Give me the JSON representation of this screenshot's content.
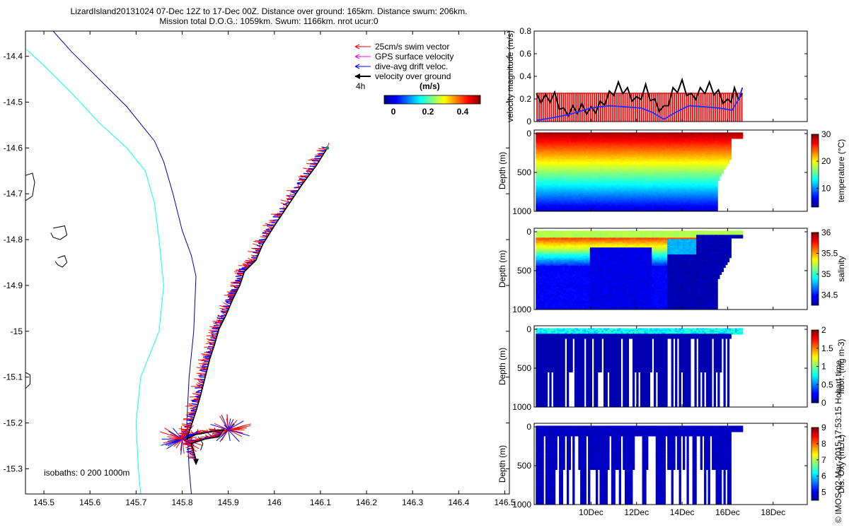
{
  "header": {
    "line1": "LizardIsland20131024 07-Dec 12Z to 17-Dec 00Z. Distance over ground: 165km. Distance swum: 206km.",
    "line2": "Mission total D.O.G.: 1059km. Swum: 1166km. nrot ucur:0"
  },
  "credit": "© IMOS 02-Mar-2015 17:53:15 Hobart time",
  "colors": {
    "swim": "#ff0000",
    "gps": "#ff00ff",
    "drift": "#0000ff",
    "ground": "#000000",
    "isobath_0": "#000000",
    "isobath_200": "#00ffff",
    "isobath_1000": "#0000aa"
  },
  "chart_data": [
    {
      "type": "scatter",
      "panel": "map",
      "xlim": [
        145.46,
        146.51
      ],
      "ylim": [
        -15.355,
        -14.345
      ],
      "xticks": [
        145.5,
        145.6,
        145.7,
        145.8,
        145.9,
        146,
        146.1,
        146.2,
        146.3,
        146.4,
        146.5
      ],
      "yticks": [
        -14.4,
        -14.5,
        -14.6,
        -14.7,
        -14.8,
        -14.9,
        -15,
        -15.1,
        -15.2,
        -15.3
      ],
      "legend": [
        "25cm/s swim vector",
        "GPS surface velocity",
        "dive-avg drift veloc.",
        "velocity over ground"
      ],
      "scale_label": "4h",
      "colorbar": {
        "label": "(m/s)",
        "ticks": [
          "0",
          "0.2",
          "0.4"
        ],
        "range": [
          -0.05,
          0.5
        ]
      },
      "isobath_label": "isobaths: 0   200  1000m",
      "track": [
        [
          146.115,
          -14.6
        ],
        [
          146.09,
          -14.64
        ],
        [
          146.06,
          -14.68
        ],
        [
          146.03,
          -14.725
        ],
        [
          146.0,
          -14.77
        ],
        [
          145.975,
          -14.81
        ],
        [
          145.96,
          -14.845
        ],
        [
          145.935,
          -14.87
        ],
        [
          145.925,
          -14.9
        ],
        [
          145.91,
          -14.93
        ],
        [
          145.895,
          -14.965
        ],
        [
          145.88,
          -14.995
        ],
        [
          145.87,
          -15.03
        ],
        [
          145.86,
          -15.06
        ],
        [
          145.85,
          -15.1
        ],
        [
          145.84,
          -15.14
        ],
        [
          145.83,
          -15.175
        ],
        [
          145.82,
          -15.205
        ],
        [
          145.81,
          -15.235
        ],
        [
          145.83,
          -15.225
        ],
        [
          145.86,
          -15.22
        ],
        [
          145.89,
          -15.215
        ],
        [
          145.88,
          -15.23
        ],
        [
          145.85,
          -15.235
        ],
        [
          145.82,
          -15.245
        ],
        [
          145.83,
          -15.28
        ]
      ],
      "isobath_0": [
        [
          [
            145.46,
            -14.66
          ],
          [
            145.475,
            -14.655
          ],
          [
            145.48,
            -14.675
          ],
          [
            145.475,
            -14.705
          ],
          [
            145.46,
            -14.715
          ]
        ],
        [
          [
            145.52,
            -14.775
          ],
          [
            145.545,
            -14.77
          ],
          [
            145.55,
            -14.79
          ],
          [
            145.535,
            -14.8
          ],
          [
            145.52,
            -14.795
          ],
          [
            145.515,
            -14.785
          ]
        ],
        [
          [
            145.53,
            -14.84
          ],
          [
            145.545,
            -14.835
          ],
          [
            145.55,
            -14.85
          ],
          [
            145.54,
            -14.86
          ],
          [
            145.53,
            -14.855
          ],
          [
            145.525,
            -14.848
          ]
        ],
        [
          [
            145.46,
            -15.09
          ],
          [
            145.47,
            -15.095
          ],
          [
            145.47,
            -15.115
          ],
          [
            145.46,
            -15.125
          ]
        ],
        [
          [
            145.835,
            -15.23
          ],
          [
            145.845,
            -15.245
          ],
          [
            145.84,
            -15.26
          ]
        ]
      ],
      "isobath_200": [
        [
          145.462,
          -14.385
        ],
        [
          145.5,
          -14.42
        ],
        [
          145.56,
          -14.48
        ],
        [
          145.62,
          -14.545
        ],
        [
          145.68,
          -14.6
        ],
        [
          145.72,
          -14.65
        ],
        [
          145.74,
          -14.72
        ],
        [
          145.75,
          -14.8
        ],
        [
          145.76,
          -14.9
        ],
        [
          145.75,
          -15.0
        ],
        [
          145.71,
          -15.1
        ],
        [
          145.7,
          -15.2
        ],
        [
          145.705,
          -15.3
        ],
        [
          145.71,
          -15.355
        ]
      ],
      "isobath_1000": [
        [
          145.52,
          -14.345
        ],
        [
          145.56,
          -14.39
        ],
        [
          145.62,
          -14.45
        ],
        [
          145.68,
          -14.51
        ],
        [
          145.74,
          -14.585
        ],
        [
          145.76,
          -14.63
        ],
        [
          145.78,
          -14.7
        ],
        [
          145.8,
          -14.78
        ],
        [
          145.82,
          -14.835
        ],
        [
          145.83,
          -14.88
        ],
        [
          145.825,
          -15.0
        ],
        [
          145.815,
          -15.1
        ],
        [
          145.81,
          -15.2
        ],
        [
          145.815,
          -15.3
        ],
        [
          145.82,
          -15.355
        ]
      ]
    },
    {
      "type": "line",
      "panel": "velocity",
      "ylabel": "velocity magnitude (m/s)",
      "xlim": [
        7.5,
        19.5
      ],
      "ylim": [
        0,
        0.8
      ],
      "yticks": [
        "0",
        "0.2",
        "0.4",
        "0.6",
        "0.8"
      ],
      "series": [
        {
          "name": "swim",
          "color": "#ff0000",
          "value": 0.25,
          "x_start": 7.6,
          "x_end": 16.65
        },
        {
          "name": "ground",
          "color": "#000000",
          "x": [
            7.6,
            8.0,
            8.4,
            8.8,
            9.2,
            9.6,
            10.0,
            10.4,
            10.8,
            11.2,
            11.6,
            12.0,
            12.4,
            12.8,
            13.2,
            13.6,
            14.0,
            14.4,
            14.8,
            15.2,
            15.6,
            16.0,
            16.3,
            16.65
          ],
          "y": [
            0.25,
            0.24,
            0.26,
            0.12,
            0.14,
            0.16,
            0.13,
            0.18,
            0.27,
            0.35,
            0.3,
            0.22,
            0.33,
            0.2,
            0.14,
            0.3,
            0.37,
            0.25,
            0.3,
            0.35,
            0.28,
            0.2,
            0.3,
            0.25
          ]
        },
        {
          "name": "drift",
          "color": "#2030ff",
          "x": [
            7.6,
            8.2,
            9.0,
            10.0,
            10.8,
            11.5,
            12.2,
            12.7,
            13.2,
            13.7,
            14.3,
            15.0,
            15.6,
            16.2,
            16.5,
            16.65
          ],
          "y": [
            0.01,
            0.03,
            0.06,
            0.12,
            0.14,
            0.13,
            0.12,
            0.08,
            0.02,
            0.08,
            0.14,
            0.13,
            0.12,
            0.1,
            0.2,
            0.3
          ]
        }
      ]
    },
    {
      "type": "heatmap",
      "panel": "temperature",
      "ylabel": "Depth (m)",
      "yticks": [
        "0",
        "500",
        "1000"
      ],
      "colorbar_label": "temperature (°C)",
      "colorbar_ticks": [
        "10",
        "20",
        "30"
      ],
      "range": [
        3,
        30
      ]
    },
    {
      "type": "heatmap",
      "panel": "salinity",
      "ylabel": "Depth (m)",
      "yticks": [
        "0",
        "500",
        "1000"
      ],
      "colorbar_label": "salinity",
      "colorbar_ticks": [
        "34.5",
        "35",
        "35.5",
        "36"
      ],
      "range": [
        34.25,
        36
      ]
    },
    {
      "type": "heatmap",
      "panel": "fluorescence",
      "ylabel": "Depth (m)",
      "yticks": [
        "0",
        "500",
        "1000"
      ],
      "colorbar_label": "fluor. (mg m-3)",
      "colorbar_ticks": [
        "0",
        "0.5",
        "1",
        "1.5",
        "2"
      ],
      "range": [
        0,
        2
      ]
    },
    {
      "type": "heatmap",
      "panel": "oxygen",
      "ylabel": "Depth (m)",
      "yticks": [
        "0",
        "500",
        "1000"
      ],
      "colorbar_label": "Dis. Oxy (mL/L)",
      "colorbar_ticks": [
        "5",
        "6",
        "7",
        "8",
        "9"
      ],
      "range": [
        4.5,
        9
      ],
      "xticks": [
        "10Dec",
        "12Dec",
        "14Dec",
        "16Dec",
        "18Dec"
      ],
      "xtick_values": [
        10,
        12,
        14,
        16,
        18
      ]
    }
  ]
}
